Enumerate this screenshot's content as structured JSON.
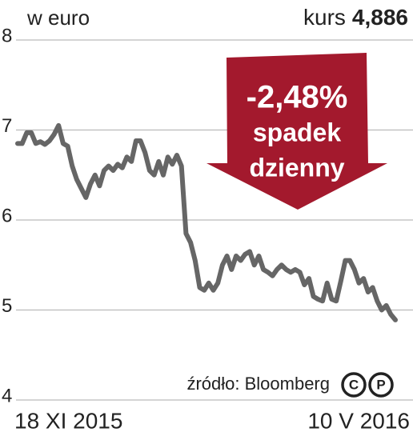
{
  "chart_data": {
    "type": "line",
    "unit_label": "w euro",
    "header_label": "kurs",
    "header_value": "4,886",
    "annotation": {
      "lines": [
        "-2,48%",
        "spadek",
        "dzienny"
      ]
    },
    "source": "źródło: Bloomberg",
    "license_icons": [
      "C",
      "P"
    ],
    "categories": [
      "18 XI 2015",
      null,
      null,
      null,
      null,
      null,
      null,
      null,
      null,
      null,
      null,
      null,
      null,
      null,
      null,
      null,
      null,
      null,
      null,
      null,
      null,
      null,
      null,
      null,
      null,
      null,
      null,
      null,
      null,
      null,
      null,
      null,
      null,
      null,
      null,
      null,
      null,
      null,
      null,
      null,
      null,
      null,
      null,
      null,
      null,
      null,
      null,
      null,
      null,
      null,
      null,
      null,
      null,
      null,
      null,
      null,
      null,
      null,
      null,
      null,
      null,
      null,
      null,
      null,
      null,
      null,
      null,
      null,
      null,
      null,
      null,
      null,
      null,
      null,
      null,
      null,
      null,
      null,
      null,
      null,
      null,
      null,
      null,
      "10 V 2016"
    ],
    "values": [
      6.85,
      6.85,
      6.97,
      6.97,
      6.85,
      6.87,
      6.84,
      6.88,
      6.95,
      7.05,
      6.85,
      6.82,
      6.6,
      6.45,
      6.35,
      6.25,
      6.4,
      6.5,
      6.38,
      6.55,
      6.6,
      6.55,
      6.62,
      6.58,
      6.7,
      6.65,
      6.88,
      6.88,
      6.75,
      6.55,
      6.5,
      6.65,
      6.5,
      6.7,
      6.62,
      6.72,
      6.6,
      5.85,
      5.75,
      5.55,
      5.25,
      5.22,
      5.3,
      5.22,
      5.3,
      5.5,
      5.6,
      5.45,
      5.6,
      5.55,
      5.62,
      5.65,
      5.5,
      5.6,
      5.45,
      5.42,
      5.38,
      5.45,
      5.5,
      5.45,
      5.42,
      5.45,
      5.42,
      5.28,
      5.35,
      5.15,
      5.12,
      5.1,
      5.3,
      5.12,
      5.1,
      5.32,
      5.55,
      5.55,
      5.45,
      5.3,
      5.35,
      5.2,
      5.25,
      5.1,
      5.0,
      5.05,
      4.95,
      4.89
    ],
    "color": "#666666",
    "annotation_color": "#a3192d",
    "ylim": [
      4,
      8
    ],
    "yticks": [
      4,
      5,
      6,
      7,
      8
    ],
    "grid": true
  }
}
